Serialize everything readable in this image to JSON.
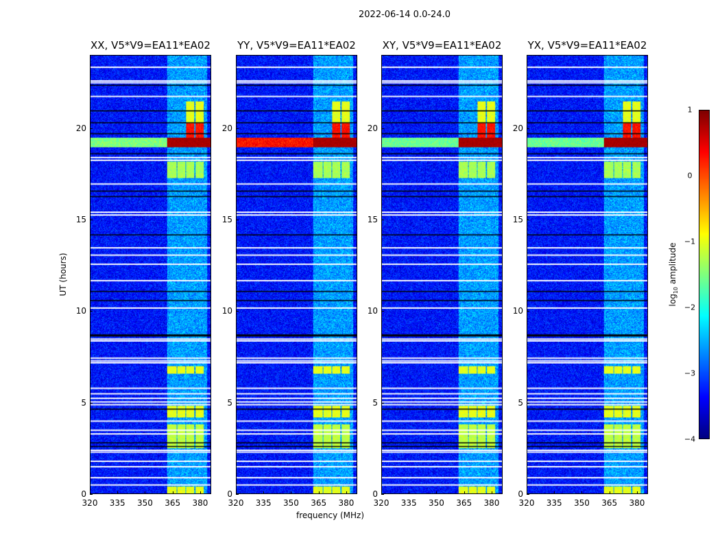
{
  "figure_title": "2022-06-14 0.0-24.0",
  "chart_data": {
    "type": "heatmap",
    "title": "2022-06-14 0.0-24.0",
    "xlabel": "frequency (MHz)",
    "ylabel": "UT (hours)",
    "xlim": [
      320,
      386
    ],
    "ylim": [
      0,
      24
    ],
    "xticks": [
      "320",
      "335",
      "350",
      "365",
      "380"
    ],
    "xtick_values": [
      320,
      335,
      350,
      365,
      380
    ],
    "yticks": [
      "0",
      "5",
      "10",
      "15",
      "20"
    ],
    "ytick_values": [
      0,
      5,
      10,
      15,
      20
    ],
    "colorbar": {
      "label": "log10 amplitude",
      "label_main": "log",
      "label_sub": "10",
      "label_rest": " amplitude",
      "range": [
        -4,
        1
      ],
      "ticks": [
        "−4",
        "−3",
        "−2",
        "−1",
        "0",
        "1"
      ],
      "tick_values": [
        -4,
        -3,
        -2,
        -1,
        0,
        1
      ],
      "colormap": "jet"
    },
    "panels": [
      {
        "title": "XX, V5*V9=EA11*EA02",
        "pol": "XX"
      },
      {
        "title": "YY, V5*V9=EA11*EA02",
        "pol": "YY"
      },
      {
        "title": "XY, V5*V9=EA11*EA02",
        "pol": "XY"
      },
      {
        "title": "YX, V5*V9=EA11*EA02",
        "pol": "YX"
      }
    ],
    "background_log_amp": -3.3,
    "flagged_hours": [
      23.4,
      22.65,
      22.55,
      21.8,
      18.45,
      18.3,
      17.0,
      15.45,
      15.3,
      13.5,
      13.1,
      12.6,
      11.7,
      10.2,
      8.5,
      8.4,
      7.45,
      7.3,
      7.2,
      5.8,
      5.5,
      5.25,
      5.05,
      4.9,
      4.0,
      3.5,
      3.3,
      2.4,
      2.3,
      1.8,
      1.5,
      0.9,
      0.5
    ],
    "gap_hours": [
      22.4,
      21.0,
      20.35,
      19.75,
      18.65,
      16.6,
      16.3,
      14.2,
      11.1,
      10.6,
      8.72,
      8.66,
      4.65,
      2.8,
      2.6
    ],
    "rfi_subbands_mhz": [
      [
        362,
        367
      ],
      [
        367.5,
        372
      ],
      [
        372.5,
        377
      ],
      [
        377.5,
        382
      ]
    ],
    "rfi_events": [
      {
        "hours": [
          17.3,
          18.2
        ],
        "log_amp": -1.3
      },
      {
        "hours": [
          6.6,
          7.0
        ],
        "log_amp": -1.0
      },
      {
        "hours": [
          4.2,
          4.8
        ],
        "log_amp": -1.0
      },
      {
        "hours": [
          2.5,
          3.8
        ],
        "log_amp": -1.2
      },
      {
        "hours": [
          0.0,
          0.4
        ],
        "log_amp": -1.0
      },
      {
        "hours": [
          20.3,
          21.5
        ],
        "log_amp": -1.0,
        "subbands": [
          2,
          3
        ]
      },
      {
        "hours": [
          19.5,
          20.3
        ],
        "log_amp": 0.3,
        "subbands": [
          2,
          3
        ]
      }
    ],
    "broadband_event": {
      "hours": [
        19.0,
        19.5
      ],
      "log_amp_high_band": 0.8,
      "log_amp_low_band": {
        "XX": -1.5,
        "YY": 0.3,
        "XY": -1.6,
        "YX": -1.6
      }
    }
  }
}
